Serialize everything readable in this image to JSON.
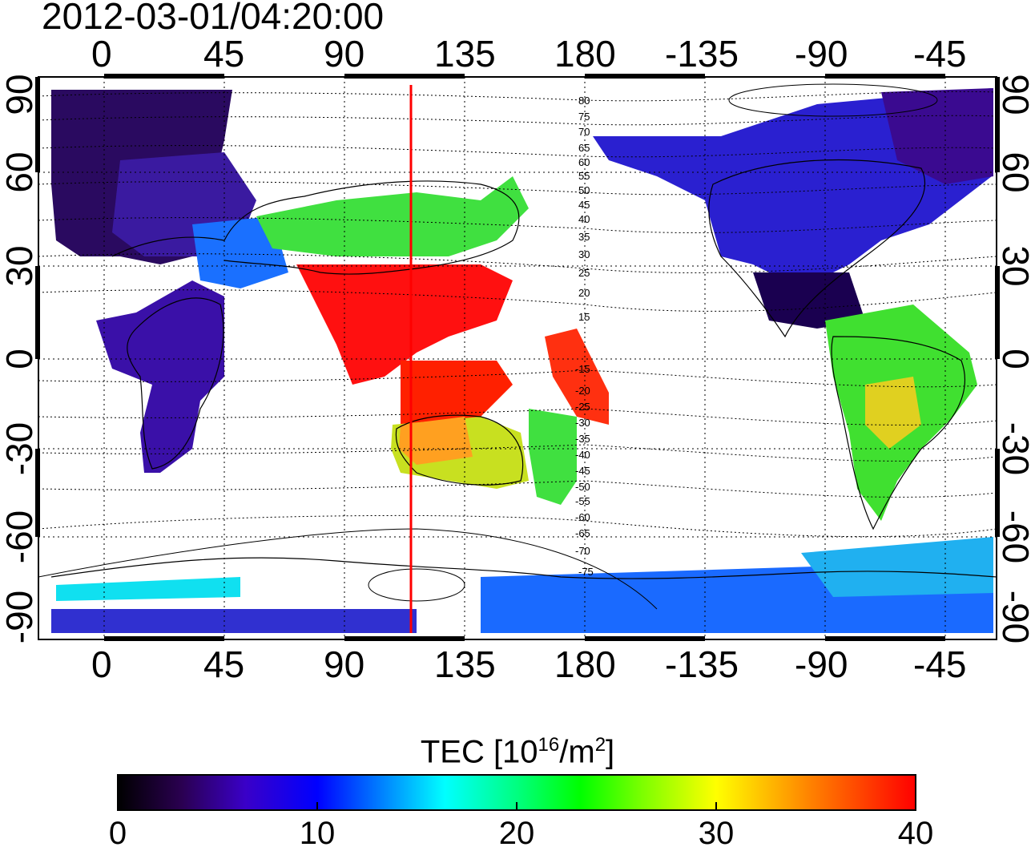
{
  "timestamp": "2012-03-01/04:20:00",
  "map": {
    "top_lon_ticks": [
      "0",
      "45",
      "90",
      "135",
      "180",
      "-135",
      "-90",
      "-45"
    ],
    "bottom_lon_ticks": [
      "0",
      "45",
      "90",
      "135",
      "180",
      "-135",
      "-90",
      "-45"
    ],
    "left_lat_ticks": [
      "90",
      "60",
      "30",
      "0",
      "-30",
      "-60",
      "-90"
    ],
    "right_lat_ticks": [
      "90",
      "60",
      "30",
      "0",
      "-30",
      "-60",
      "-90"
    ],
    "contour_labels": [
      "80",
      "75",
      "70",
      "65",
      "60",
      "55",
      "50",
      "45",
      "40",
      "35",
      "30",
      "25",
      "20",
      "15",
      "-15",
      "-20",
      "-25",
      "-30",
      "-35",
      "-40",
      "-45",
      "-50",
      "-55",
      "-60",
      "-65",
      "-70",
      "-75"
    ],
    "marker_longitude": 115
  },
  "colorbar": {
    "title_main": "TEC  [10",
    "title_sup1": "16",
    "title_mid": "/m",
    "title_sup2": "2",
    "title_end": "]",
    "ticks": [
      "0",
      "10",
      "20",
      "30",
      "40"
    ],
    "min": 0,
    "max": 40,
    "colors": [
      "#000000",
      "#2a0050",
      "#3a00c8",
      "#0000ff",
      "#0080ff",
      "#00ffff",
      "#00ff80",
      "#00ff00",
      "#80ff00",
      "#ffff00",
      "#ff8000",
      "#ff0000"
    ]
  }
}
